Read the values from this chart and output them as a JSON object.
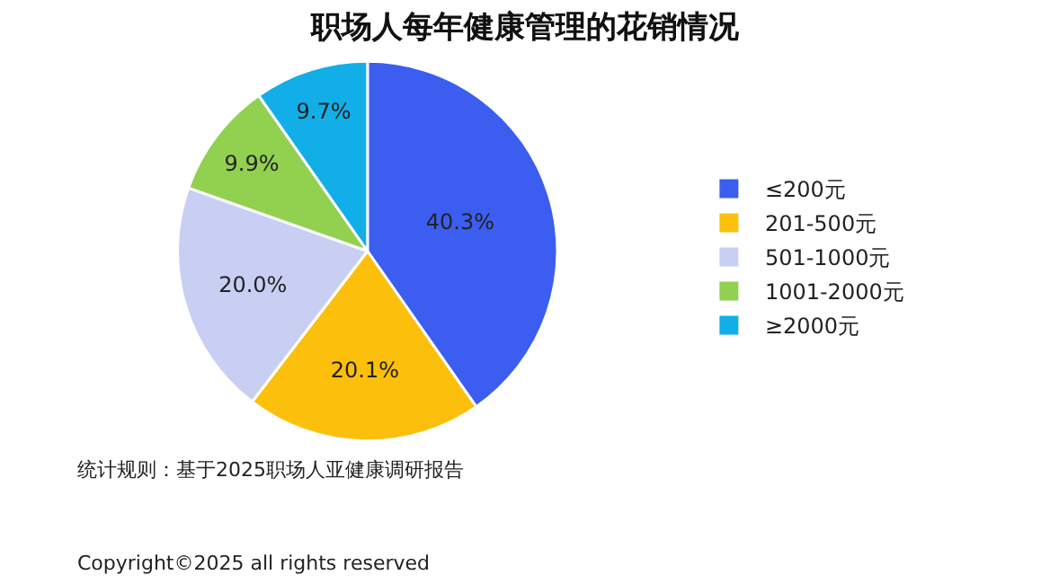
{
  "chart_data": {
    "type": "pie",
    "title": "职场人每年健康管理的花销情况",
    "categories": [
      "≤200元",
      "201-500元",
      "501-1000元",
      "1001-2000元",
      "≥2000元"
    ],
    "values": [
      40.3,
      20.1,
      20.0,
      9.9,
      9.7
    ],
    "colors": [
      "#3c5ef0",
      "#fcbf0c",
      "#c8cff2",
      "#92d050",
      "#12aee8"
    ],
    "value_labels": [
      "40.3%",
      "20.1%",
      "20.0%",
      "9.9%",
      "9.7%"
    ],
    "legend": "right",
    "annotations": [
      "统计规则：基于2025职场人亚健康调研报告",
      "Copyright©2025 all rights reserved"
    ]
  }
}
